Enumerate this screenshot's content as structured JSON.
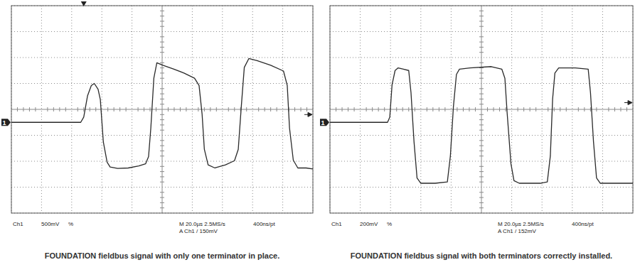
{
  "chart_data": [
    {
      "type": "line",
      "title": "FOUNDATION fieldbus signal with only one terminator in place.",
      "channel_label": "Ch1",
      "vertical_scale": "500mV",
      "bandwidth_symbol": "%",
      "timebase": "M 20.0µs 2.5MS/s",
      "sample_interval": "400ns/pt",
      "trigger": "A Ch1 / 150mV",
      "channel_marker": {
        "label": "1",
        "value": 0
      },
      "trigger_level": 150,
      "trigger_time": 48,
      "color": "#2a2a2a",
      "grid": true,
      "tick_labels": false,
      "xlim": [
        0,
        200
      ],
      "xticks": [
        0,
        20,
        40,
        60,
        80,
        100,
        120,
        140,
        160,
        180,
        200
      ],
      "ylim": [
        -1750,
        2250
      ],
      "yticks": [
        -1750,
        -1250,
        -750,
        -250,
        250,
        750,
        1250,
        1750,
        2250
      ],
      "x": [
        0,
        46,
        48,
        50.5,
        53,
        55,
        57.5,
        59,
        61,
        63.5,
        65.5,
        70.5,
        77.5,
        84.5,
        89,
        91,
        92.5,
        94.5,
        96.5,
        100.5,
        107.5,
        114.5,
        121.5,
        124.5,
        126.5,
        128,
        130.5,
        135,
        142,
        148,
        150.5,
        152.5,
        154.5,
        157.5,
        163,
        172,
        180.5,
        183,
        184.5,
        187,
        190,
        195.5,
        200
      ],
      "values": [
        0,
        0,
        100,
        510,
        710,
        750,
        640,
        440,
        -380,
        -770,
        -860,
        -890,
        -880,
        -840,
        -800,
        -660,
        -110,
        850,
        1150,
        1100,
        1030,
        950,
        850,
        710,
        160,
        -520,
        -820,
        -880,
        -820,
        -740,
        -520,
        300,
        1060,
        1230,
        1190,
        1100,
        990,
        710,
        -110,
        -730,
        -880,
        -880,
        -900
      ]
    },
    {
      "type": "line",
      "title": "FOUNDATION fieldbus signal with both terminators correctly installed.",
      "channel_label": "Ch1",
      "vertical_scale": "200mV",
      "bandwidth_symbol": "%",
      "timebase": "M 20.0µs 2.5MS/s",
      "sample_interval": "400ns/pt",
      "trigger": "A Ch1 / 152mV",
      "channel_marker": {
        "label": "1",
        "value": 0
      },
      "trigger_level": 152,
      "color": "#2a2a2a",
      "grid": true,
      "tick_labels": false,
      "xlim": [
        0,
        200
      ],
      "xticks": [
        0,
        20,
        40,
        60,
        80,
        100,
        120,
        140,
        160,
        180,
        200
      ],
      "ylim": [
        -700,
        900
      ],
      "yticks": [
        -700,
        -500,
        -300,
        -100,
        100,
        300,
        500,
        700,
        900
      ],
      "x": [
        0,
        38,
        39.5,
        41,
        43,
        45,
        48.5,
        52,
        53.5,
        55.5,
        57.5,
        60,
        69.5,
        77.5,
        79.5,
        81.5,
        83.5,
        85.5,
        92.5,
        106.5,
        113.5,
        115.5,
        117,
        119.5,
        121.5,
        125,
        139,
        143.5,
        145.5,
        147,
        148.5,
        151,
        162,
        170.5,
        172,
        174,
        176,
        178.5,
        190,
        200
      ],
      "values": [
        0,
        0,
        40,
        290,
        400,
        420,
        410,
        400,
        230,
        -150,
        -430,
        -470,
        -470,
        -460,
        -260,
        120,
        370,
        410,
        420,
        430,
        410,
        340,
        70,
        -320,
        -450,
        -470,
        -470,
        -460,
        -260,
        180,
        380,
        420,
        420,
        410,
        230,
        -150,
        -430,
        -470,
        -470,
        -470
      ]
    }
  ]
}
